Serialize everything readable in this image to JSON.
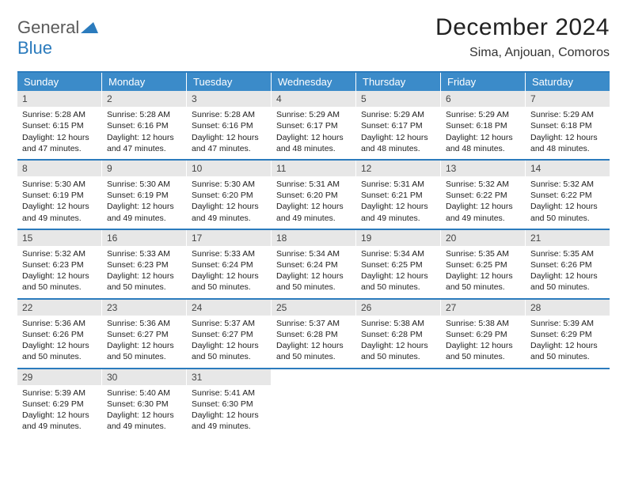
{
  "logo": {
    "general": "General",
    "blue": "Blue"
  },
  "title": "December 2024",
  "location": "Sima, Anjouan, Comoros",
  "colors": {
    "header_bg": "#3b8bc9",
    "header_fg": "#ffffff",
    "rule": "#2b7bbd",
    "daynum_bg": "#e7e7e7",
    "text": "#222222",
    "logo_gray": "#5a5a5a",
    "logo_blue": "#2b7bbd"
  },
  "daysOfWeek": [
    "Sunday",
    "Monday",
    "Tuesday",
    "Wednesday",
    "Thursday",
    "Friday",
    "Saturday"
  ],
  "weeks": [
    [
      {
        "n": "1",
        "sr": "5:28 AM",
        "ss": "6:15 PM",
        "dl": "12 hours and 47 minutes."
      },
      {
        "n": "2",
        "sr": "5:28 AM",
        "ss": "6:16 PM",
        "dl": "12 hours and 47 minutes."
      },
      {
        "n": "3",
        "sr": "5:28 AM",
        "ss": "6:16 PM",
        "dl": "12 hours and 47 minutes."
      },
      {
        "n": "4",
        "sr": "5:29 AM",
        "ss": "6:17 PM",
        "dl": "12 hours and 48 minutes."
      },
      {
        "n": "5",
        "sr": "5:29 AM",
        "ss": "6:17 PM",
        "dl": "12 hours and 48 minutes."
      },
      {
        "n": "6",
        "sr": "5:29 AM",
        "ss": "6:18 PM",
        "dl": "12 hours and 48 minutes."
      },
      {
        "n": "7",
        "sr": "5:29 AM",
        "ss": "6:18 PM",
        "dl": "12 hours and 48 minutes."
      }
    ],
    [
      {
        "n": "8",
        "sr": "5:30 AM",
        "ss": "6:19 PM",
        "dl": "12 hours and 49 minutes."
      },
      {
        "n": "9",
        "sr": "5:30 AM",
        "ss": "6:19 PM",
        "dl": "12 hours and 49 minutes."
      },
      {
        "n": "10",
        "sr": "5:30 AM",
        "ss": "6:20 PM",
        "dl": "12 hours and 49 minutes."
      },
      {
        "n": "11",
        "sr": "5:31 AM",
        "ss": "6:20 PM",
        "dl": "12 hours and 49 minutes."
      },
      {
        "n": "12",
        "sr": "5:31 AM",
        "ss": "6:21 PM",
        "dl": "12 hours and 49 minutes."
      },
      {
        "n": "13",
        "sr": "5:32 AM",
        "ss": "6:22 PM",
        "dl": "12 hours and 49 minutes."
      },
      {
        "n": "14",
        "sr": "5:32 AM",
        "ss": "6:22 PM",
        "dl": "12 hours and 50 minutes."
      }
    ],
    [
      {
        "n": "15",
        "sr": "5:32 AM",
        "ss": "6:23 PM",
        "dl": "12 hours and 50 minutes."
      },
      {
        "n": "16",
        "sr": "5:33 AM",
        "ss": "6:23 PM",
        "dl": "12 hours and 50 minutes."
      },
      {
        "n": "17",
        "sr": "5:33 AM",
        "ss": "6:24 PM",
        "dl": "12 hours and 50 minutes."
      },
      {
        "n": "18",
        "sr": "5:34 AM",
        "ss": "6:24 PM",
        "dl": "12 hours and 50 minutes."
      },
      {
        "n": "19",
        "sr": "5:34 AM",
        "ss": "6:25 PM",
        "dl": "12 hours and 50 minutes."
      },
      {
        "n": "20",
        "sr": "5:35 AM",
        "ss": "6:25 PM",
        "dl": "12 hours and 50 minutes."
      },
      {
        "n": "21",
        "sr": "5:35 AM",
        "ss": "6:26 PM",
        "dl": "12 hours and 50 minutes."
      }
    ],
    [
      {
        "n": "22",
        "sr": "5:36 AM",
        "ss": "6:26 PM",
        "dl": "12 hours and 50 minutes."
      },
      {
        "n": "23",
        "sr": "5:36 AM",
        "ss": "6:27 PM",
        "dl": "12 hours and 50 minutes."
      },
      {
        "n": "24",
        "sr": "5:37 AM",
        "ss": "6:27 PM",
        "dl": "12 hours and 50 minutes."
      },
      {
        "n": "25",
        "sr": "5:37 AM",
        "ss": "6:28 PM",
        "dl": "12 hours and 50 minutes."
      },
      {
        "n": "26",
        "sr": "5:38 AM",
        "ss": "6:28 PM",
        "dl": "12 hours and 50 minutes."
      },
      {
        "n": "27",
        "sr": "5:38 AM",
        "ss": "6:29 PM",
        "dl": "12 hours and 50 minutes."
      },
      {
        "n": "28",
        "sr": "5:39 AM",
        "ss": "6:29 PM",
        "dl": "12 hours and 50 minutes."
      }
    ],
    [
      {
        "n": "29",
        "sr": "5:39 AM",
        "ss": "6:29 PM",
        "dl": "12 hours and 49 minutes."
      },
      {
        "n": "30",
        "sr": "5:40 AM",
        "ss": "6:30 PM",
        "dl": "12 hours and 49 minutes."
      },
      {
        "n": "31",
        "sr": "5:41 AM",
        "ss": "6:30 PM",
        "dl": "12 hours and 49 minutes."
      },
      null,
      null,
      null,
      null
    ]
  ],
  "labels": {
    "sunrise": "Sunrise:",
    "sunset": "Sunset:",
    "daylight": "Daylight:"
  }
}
